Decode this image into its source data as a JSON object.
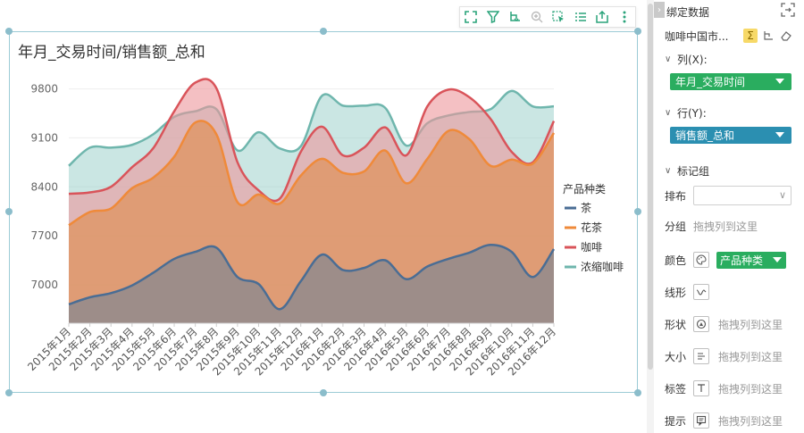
{
  "toolbar": {
    "icons": [
      "fullscreen-icon",
      "filter-icon",
      "drill-icon",
      "zoom-icon",
      "select-icon",
      "list-icon",
      "export-icon",
      "more-icon"
    ]
  },
  "chart_data": {
    "type": "area",
    "title": "年月_交易时间/销售额_总和",
    "xlabel": "",
    "ylabel": "",
    "ylim": [
      6450,
      10050
    ],
    "yticks": [
      7000,
      7700,
      8400,
      9100,
      9800
    ],
    "grid": true,
    "stacked": false,
    "legend_title": "产品种类",
    "legend_position": "right",
    "x": [
      "2015年1月",
      "2015年2月",
      "2015年3月",
      "2015年4月",
      "2015年5月",
      "2015年6月",
      "2015年7月",
      "2015年8月",
      "2015年9月",
      "2015年10月",
      "2015年11月",
      "2015年12月",
      "2016年1月",
      "2016年2月",
      "2016年3月",
      "2016年4月",
      "2016年5月",
      "2016年6月",
      "2016年7月",
      "2016年8月",
      "2016年9月",
      "2016年10月",
      "2016年11月",
      "2016年12月"
    ],
    "series": [
      {
        "name": "浓缩咖啡",
        "color": "#6fb6ad",
        "fill": "rgba(150,205,200,0.5)",
        "values": [
          8700,
          8960,
          8960,
          9000,
          9150,
          9400,
          9480,
          9510,
          8920,
          9180,
          8950,
          8980,
          9700,
          9560,
          9560,
          9530,
          8990,
          9310,
          9420,
          9470,
          9510,
          9770,
          9550,
          9550
        ]
      },
      {
        "name": "咖啡",
        "color": "#d9545a",
        "fill": "rgba(236,150,155,0.6)",
        "values": [
          8300,
          8320,
          8400,
          8680,
          8950,
          9480,
          9890,
          9810,
          8750,
          8350,
          8230,
          8900,
          9260,
          8850,
          8960,
          9250,
          8850,
          9550,
          9790,
          9680,
          9370,
          8900,
          8750,
          9340
        ]
      },
      {
        "name": "花茶",
        "color": "#ef8a3a",
        "fill": "rgba(222,150,100,0.8)",
        "values": [
          7850,
          8040,
          8090,
          8380,
          8530,
          8830,
          9320,
          9150,
          8180,
          8290,
          8160,
          8560,
          8800,
          8600,
          8620,
          8920,
          8450,
          8800,
          9200,
          9080,
          8700,
          8790,
          8730,
          9170
        ]
      },
      {
        "name": "茶",
        "color": "#4a6d94",
        "fill": "rgba(150,140,140,0.9)",
        "values": [
          6720,
          6820,
          6880,
          6990,
          7170,
          7370,
          7470,
          7530,
          7110,
          7010,
          6650,
          7050,
          7430,
          7210,
          7240,
          7350,
          7080,
          7260,
          7370,
          7460,
          7570,
          7470,
          7110,
          7510
        ]
      }
    ]
  },
  "panel": {
    "collapse": "›",
    "title": "绑定数据",
    "dataset": "咖啡中国市...",
    "sections": {
      "columns_label": "列(X):",
      "columns_value": "年月_交易时间",
      "rows_label": "行(Y):",
      "rows_value": "销售额_总和",
      "mark_group_label": "标记组"
    },
    "props": {
      "layout_label": "排布",
      "group_label": "分组",
      "group_hint": "拖拽列到这里",
      "color_label": "颜色",
      "color_value": "产品种类",
      "line_label": "线形",
      "shape_label": "形状",
      "shape_hint": "拖拽列到这里",
      "size_label": "大小",
      "size_hint": "拖拽列到这里",
      "tag_label": "标签",
      "tag_hint": "拖拽列到这里",
      "tip_label": "提示",
      "tip_hint": "拖拽列到这里"
    }
  }
}
